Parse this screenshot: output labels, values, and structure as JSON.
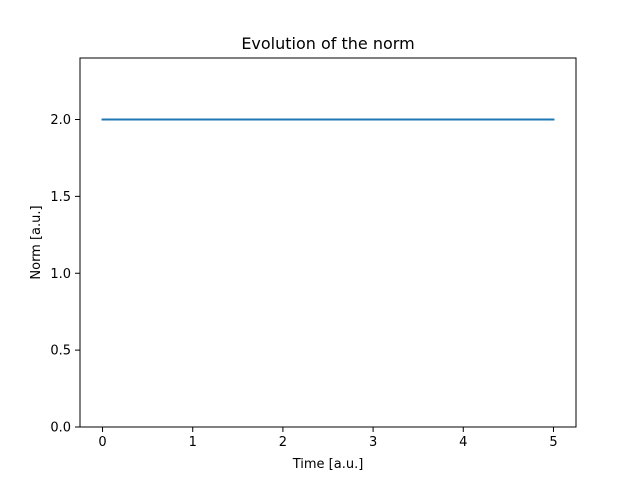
{
  "chart_data": {
    "type": "line",
    "title": "Evolution of the norm",
    "xlabel": "Time [a.u.]",
    "ylabel": "Norm [a.u.]",
    "xlim": [
      -0.25,
      5.25
    ],
    "ylim": [
      0.0,
      2.4
    ],
    "xticks": [
      0,
      1,
      2,
      3,
      4,
      5
    ],
    "xtick_labels": [
      "0",
      "1",
      "2",
      "3",
      "4",
      "5"
    ],
    "yticks": [
      0.0,
      0.5,
      1.0,
      1.5,
      2.0
    ],
    "ytick_labels": [
      "0.0",
      "0.5",
      "1.0",
      "1.5",
      "2.0"
    ],
    "grid": false,
    "series": [
      {
        "color": "#1f77b4",
        "x": [
          0,
          1,
          2,
          3,
          4,
          5
        ],
        "y": [
          2.0,
          2.0,
          2.0,
          2.0,
          2.0,
          2.0
        ]
      }
    ]
  }
}
